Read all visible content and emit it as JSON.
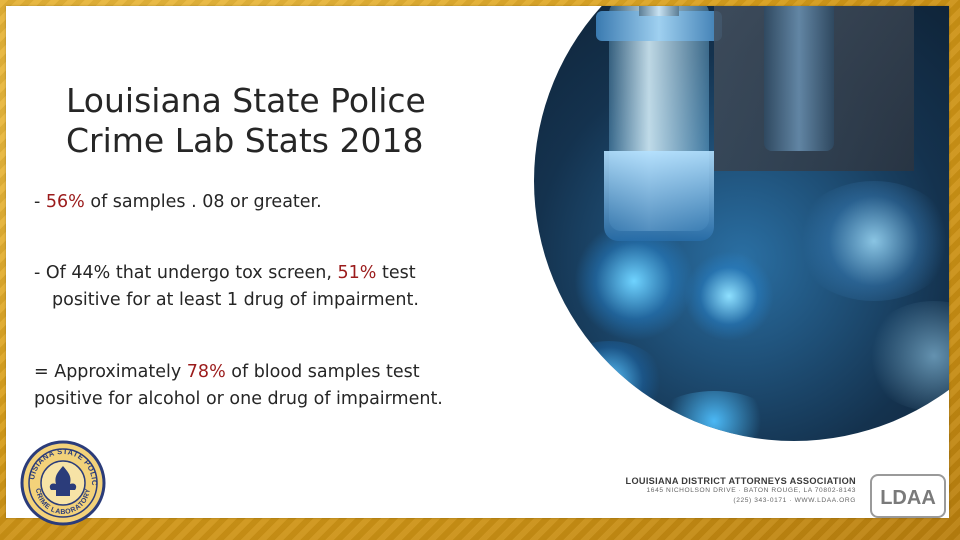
{
  "slide": {
    "title_line1": "Louisiana State Police",
    "title_line2": "Crime Lab Stats 2018",
    "bullet1": {
      "prefix": "- ",
      "highlight": "56%",
      "rest": " of samples . 08 or greater."
    },
    "bullet2": {
      "prefix": "- Of 44% that undergo tox screen, ",
      "highlight": "51%",
      "rest": " test",
      "continuation": "positive for at least 1 drug of impairment."
    },
    "bullet3": {
      "prefix": "= Approximately ",
      "highlight": "78%",
      "rest": " of blood samples test",
      "continuation": "positive for alcohol or one drug of impairment."
    }
  },
  "footer": {
    "seal_text_top": "LOUISIANA STATE POLICE",
    "seal_text_bottom": "CRIME LABORATORY",
    "org_name": "LOUISIANA DISTRICT ATTORNEYS ASSOCIATION",
    "org_address": "1645 NICHOLSON DRIVE · BATON ROUGE, LA 70802-8143",
    "org_contact": "(225) 343-0171 · WWW.LDAA.ORG",
    "org_logo_letters": "LDAA"
  },
  "colors": {
    "highlight": "#9b1b1b",
    "gold_border": "#d9a521",
    "text": "#262626"
  },
  "icons": {
    "photo": "lab-vials-photo",
    "seal": "state-police-seal-icon",
    "org_logo": "ldaa-logo-icon"
  }
}
